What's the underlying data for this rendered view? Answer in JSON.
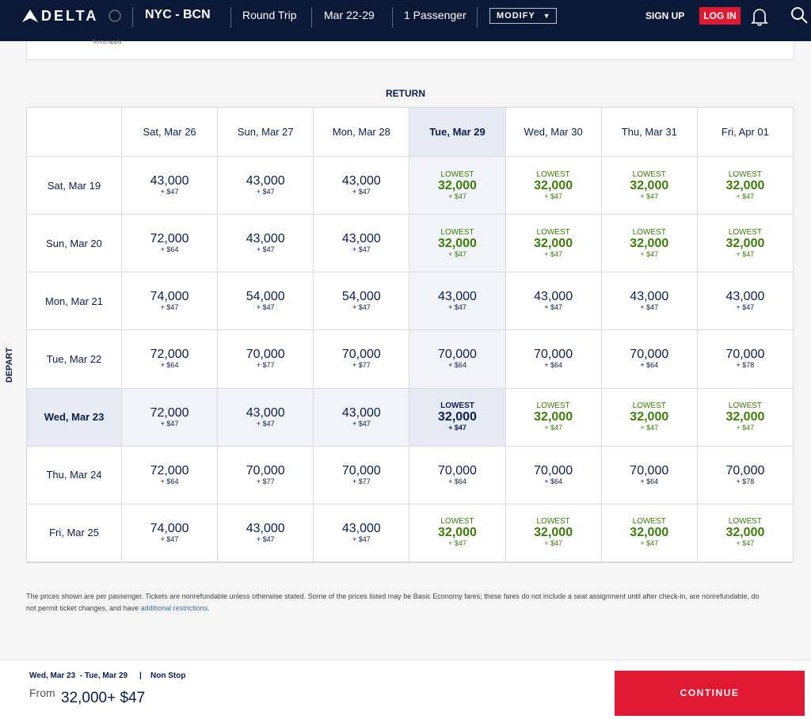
{
  "header": {
    "brand": "DELTA",
    "route": "NYC - BCN",
    "trip": "Round Trip",
    "dates": "Mar 22-29",
    "passengers": "1 Passenger",
    "modify": "MODIFY",
    "signup": "SIGN UP",
    "login": "LOG IN"
  },
  "notice": "Terms apply.",
  "grid": {
    "return_label": "RETURN",
    "depart_label": "DEPART",
    "columns": [
      {
        "label": "Sat, Mar 26"
      },
      {
        "label": "Sun, Mar 27"
      },
      {
        "label": "Mon, Mar 28"
      },
      {
        "label": "Tue, Mar 29",
        "selected": true
      },
      {
        "label": "Wed, Mar 30"
      },
      {
        "label": "Thu, Mar 31"
      },
      {
        "label": "Fri, Apr 01"
      }
    ],
    "rows": [
      {
        "label": "Sat, Mar 19",
        "cells": [
          {
            "miles": "43,000",
            "fee": "+ $47"
          },
          {
            "miles": "43,000",
            "fee": "+ $47"
          },
          {
            "miles": "43,000",
            "fee": "+ $47"
          },
          {
            "tag": "LOWEST",
            "miles": "32,000",
            "fee": "+ $47",
            "state": "path"
          },
          {
            "tag": "LOWEST",
            "miles": "32,000",
            "fee": "+ $47"
          },
          {
            "tag": "LOWEST",
            "miles": "32,000",
            "fee": "+ $47"
          },
          {
            "tag": "LOWEST",
            "miles": "32,000",
            "fee": "+ $47"
          }
        ]
      },
      {
        "label": "Sun, Mar 20",
        "cells": [
          {
            "miles": "72,000",
            "fee": "+ $64"
          },
          {
            "miles": "43,000",
            "fee": "+ $47"
          },
          {
            "miles": "43,000",
            "fee": "+ $47"
          },
          {
            "tag": "LOWEST",
            "miles": "32,000",
            "fee": "+ $47",
            "state": "path"
          },
          {
            "tag": "LOWEST",
            "miles": "32,000",
            "fee": "+ $47"
          },
          {
            "tag": "LOWEST",
            "miles": "32,000",
            "fee": "+ $47"
          },
          {
            "tag": "LOWEST",
            "miles": "32,000",
            "fee": "+ $47"
          }
        ]
      },
      {
        "label": "Mon, Mar 21",
        "cells": [
          {
            "miles": "74,000",
            "fee": "+ $47"
          },
          {
            "miles": "54,000",
            "fee": "+ $47"
          },
          {
            "miles": "54,000",
            "fee": "+ $47"
          },
          {
            "miles": "43,000",
            "fee": "+ $47",
            "state": "path"
          },
          {
            "miles": "43,000",
            "fee": "+ $47"
          },
          {
            "miles": "43,000",
            "fee": "+ $47"
          },
          {
            "miles": "43,000",
            "fee": "+ $47"
          }
        ]
      },
      {
        "label": "Tue, Mar 22",
        "cells": [
          {
            "miles": "72,000",
            "fee": "+ $64"
          },
          {
            "miles": "70,000",
            "fee": "+ $77"
          },
          {
            "miles": "70,000",
            "fee": "+ $77"
          },
          {
            "miles": "70,000",
            "fee": "+ $64",
            "state": "path"
          },
          {
            "miles": "70,000",
            "fee": "+ $64"
          },
          {
            "miles": "70,000",
            "fee": "+ $64"
          },
          {
            "miles": "70,000",
            "fee": "+ $78"
          }
        ]
      },
      {
        "label": "Wed, Mar 23",
        "selected": true,
        "cells": [
          {
            "miles": "72,000",
            "fee": "+ $47",
            "state": "path"
          },
          {
            "miles": "43,000",
            "fee": "+ $47",
            "state": "path"
          },
          {
            "miles": "43,000",
            "fee": "+ $47",
            "state": "path"
          },
          {
            "tag": "LOWEST",
            "miles": "32,000",
            "fee": "+ $47",
            "state": "selected"
          },
          {
            "tag": "LOWEST",
            "miles": "32,000",
            "fee": "+ $47"
          },
          {
            "tag": "LOWEST",
            "miles": "32,000",
            "fee": "+ $47"
          },
          {
            "tag": "LOWEST",
            "miles": "32,000",
            "fee": "+ $47"
          }
        ]
      },
      {
        "label": "Thu, Mar 24",
        "cells": [
          {
            "miles": "72,000",
            "fee": "+ $64"
          },
          {
            "miles": "70,000",
            "fee": "+ $77"
          },
          {
            "miles": "70,000",
            "fee": "+ $77"
          },
          {
            "miles": "70,000",
            "fee": "+ $64"
          },
          {
            "miles": "70,000",
            "fee": "+ $64"
          },
          {
            "miles": "70,000",
            "fee": "+ $64"
          },
          {
            "miles": "70,000",
            "fee": "+ $78"
          }
        ]
      },
      {
        "label": "Fri, Mar 25",
        "cells": [
          {
            "miles": "74,000",
            "fee": "+ $47"
          },
          {
            "miles": "43,000",
            "fee": "+ $47"
          },
          {
            "miles": "43,000",
            "fee": "+ $47"
          },
          {
            "tag": "LOWEST",
            "miles": "32,000",
            "fee": "+ $47"
          },
          {
            "tag": "LOWEST",
            "miles": "32,000",
            "fee": "+ $47"
          },
          {
            "tag": "LOWEST",
            "miles": "32,000",
            "fee": "+ $47"
          },
          {
            "tag": "LOWEST",
            "miles": "32,000",
            "fee": "+ $47"
          }
        ]
      }
    ]
  },
  "note": {
    "text": "The prices shown are per passenger. Tickets are nonrefundable unless otherwise stated. Some of the prices listed may be Basic Economy fares; these fares do not include a seat assignment until after check-in, are nonrefundable, do not permit ticket changes, and have ",
    "link": "additional restrictions",
    "end": "."
  },
  "summary": {
    "dates": "Wed, Mar 23  - Tue, Mar 29",
    "separator": "|",
    "stops": "Non Stop",
    "from": "From",
    "price": "32,000+ $47",
    "button": "CONTINUE"
  }
}
